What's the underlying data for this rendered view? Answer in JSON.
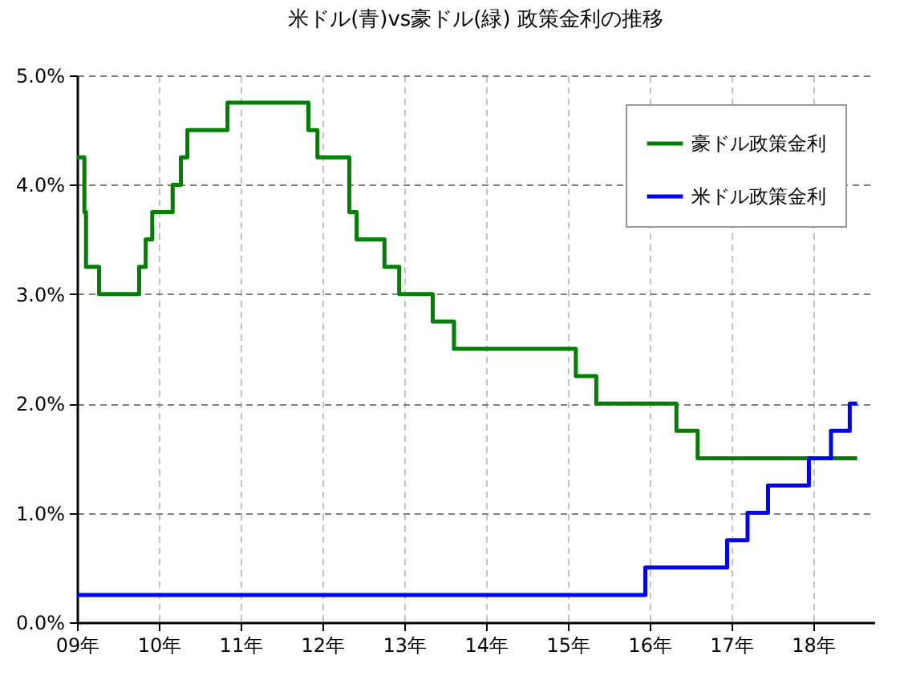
{
  "chart_data": {
    "type": "step",
    "title": "米ドル(青)vs豪ドル(緑)  政策金利の推移",
    "series": [
      {
        "name": "豪ドル政策金利",
        "color": "#008000",
        "x": [
          9,
          9.09,
          9.11,
          9.27,
          9.76,
          9.84,
          9.92,
          10.17,
          10.27,
          10.35,
          10.84,
          11.83,
          11.94,
          12.33,
          12.42,
          12.76,
          12.94,
          13.35,
          13.61,
          15.1,
          15.35,
          16.33,
          16.59,
          18.54
        ],
        "values": [
          4.25,
          3.75,
          3.25,
          3.0,
          3.25,
          3.5,
          3.75,
          4.0,
          4.25,
          4.5,
          4.75,
          4.5,
          4.25,
          3.75,
          3.5,
          3.25,
          3.0,
          2.75,
          2.5,
          2.25,
          2.0,
          1.75,
          1.5,
          1.5
        ]
      },
      {
        "name": "米ドル政策金利",
        "color": "#0000ff",
        "x": [
          9,
          15.95,
          16.95,
          17.2,
          17.45,
          17.95,
          18.22,
          18.45,
          18.54
        ],
        "values": [
          0.25,
          0.5,
          0.75,
          1.0,
          1.25,
          1.5,
          1.75,
          2.0,
          2.0
        ]
      }
    ],
    "xlim": [
      9,
      18.75
    ],
    "xticks": [
      {
        "value": 9,
        "label": "09年"
      },
      {
        "value": 10,
        "label": "10年"
      },
      {
        "value": 11,
        "label": "11年"
      },
      {
        "value": 12,
        "label": "12年"
      },
      {
        "value": 13,
        "label": "13年"
      },
      {
        "value": 14,
        "label": "14年"
      },
      {
        "value": 15,
        "label": "15年"
      },
      {
        "value": 16,
        "label": "16年"
      },
      {
        "value": 17,
        "label": "17年"
      },
      {
        "value": 18,
        "label": "18年"
      }
    ],
    "ylim": [
      0,
      5
    ],
    "yticks": [
      {
        "value": 0,
        "label": "0.0%"
      },
      {
        "value": 1,
        "label": "1.0%"
      },
      {
        "value": 2,
        "label": "2.0%"
      },
      {
        "value": 3,
        "label": "3.0%"
      },
      {
        "value": 4,
        "label": "4.0%"
      },
      {
        "value": 5,
        "label": "5.0%"
      }
    ],
    "grid": true,
    "legend": "top right",
    "line_style": "solid",
    "marker": "none"
  }
}
